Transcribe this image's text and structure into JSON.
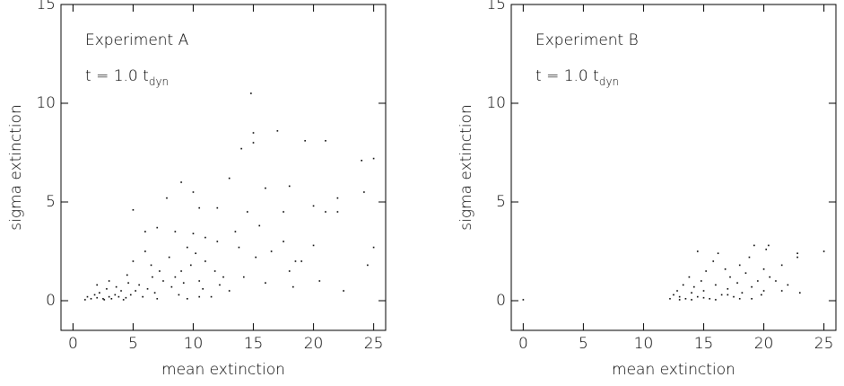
{
  "chart_data": [
    {
      "type": "scatter",
      "label": "Experiment A",
      "annotation": "t = 1.0 t",
      "annotation_subscript": "dyn",
      "x_label": "mean extinction",
      "y_label": "sigma extinction",
      "color": "#000000",
      "xlim": [
        -1,
        26
      ],
      "ylim": [
        -1.5,
        15
      ],
      "xticks": [
        0,
        5,
        10,
        15,
        20,
        25
      ],
      "yticks": [
        0,
        5,
        10,
        15
      ],
      "x": [
        14.8,
        15,
        15,
        17,
        19.3,
        21,
        24,
        25,
        14,
        13,
        9,
        10,
        16,
        18,
        20,
        22,
        24.2,
        25,
        24.5,
        22.5,
        18,
        18.3,
        17.5,
        14.5,
        15.5,
        16.5,
        20,
        19,
        13.5,
        12,
        11,
        10,
        9.5,
        8.5,
        7,
        6,
        5,
        7.8,
        11,
        12.5,
        13,
        10.5,
        9,
        8,
        7.5,
        6.5,
        5.5,
        4.5,
        4,
        3.5,
        3,
        2.5,
        2,
        1.5,
        1,
        2.2,
        2.8,
        3.2,
        3.8,
        4.2,
        4.8,
        5.2,
        5.8,
        6.2,
        6.8,
        7.2,
        8.2,
        8.8,
        9.2,
        9.8,
        10.2,
        10.8,
        11.5,
        12.2,
        14.2,
        15.2,
        6,
        5,
        3,
        2,
        1.8,
        1.2,
        3.6,
        4.6,
        6.6,
        8.5,
        7,
        9.5,
        10.5,
        11.8,
        13.8,
        16,
        17.5,
        22,
        21,
        12,
        10.5,
        18.5,
        20.5,
        2.6,
        4.4
      ],
      "y": [
        10.5,
        8.5,
        8,
        8.6,
        8.1,
        8.1,
        7.1,
        7.2,
        7.7,
        6.2,
        6,
        5.5,
        5.7,
        5.8,
        4.8,
        5.2,
        5.5,
        2.7,
        1.8,
        0.5,
        1.5,
        0.7,
        4.5,
        4.5,
        3.8,
        2.5,
        2.8,
        2,
        3.5,
        3,
        3.2,
        3.4,
        2.7,
        3.5,
        3.7,
        3.5,
        4.6,
        5.2,
        2,
        1.2,
        0.5,
        1,
        1.5,
        2.2,
        1,
        1.8,
        0.8,
        1.3,
        0.5,
        0.3,
        0.2,
        0.1,
        0.15,
        0.1,
        0.05,
        0.4,
        0.6,
        0.1,
        0.2,
        0.05,
        0.3,
        0.5,
        0.2,
        0.6,
        0.4,
        1.5,
        0.7,
        0.3,
        0.9,
        1.8,
        2.4,
        0.6,
        0.2,
        0.8,
        1.2,
        2.2,
        2.5,
        2,
        1,
        0.8,
        0.3,
        0.2,
        0.7,
        0.9,
        1.2,
        1.2,
        0.1,
        0.1,
        0.2,
        1.5,
        2.7,
        0.9,
        3,
        4.5,
        4.5,
        4.7,
        4.7,
        2,
        1,
        0.05,
        0.15
      ]
    },
    {
      "type": "scatter",
      "label": "Experiment B",
      "annotation": "t = 1.0 t",
      "annotation_subscript": "dyn",
      "x_label": "mean extinction",
      "y_label": "sigma extinction",
      "color": "#000000",
      "xlim": [
        -1,
        26
      ],
      "ylim": [
        -1.5,
        15
      ],
      "xticks": [
        0,
        5,
        10,
        15,
        20,
        25
      ],
      "yticks": [
        0,
        5,
        10,
        15
      ],
      "x": [
        0,
        12.2,
        12.5,
        12.8,
        13,
        13.3,
        13.5,
        13.8,
        14,
        14.2,
        14.5,
        14.5,
        14.8,
        15,
        15.2,
        15.5,
        15.8,
        16,
        16.2,
        16.5,
        16.8,
        17,
        17.2,
        17.5,
        17.8,
        18,
        18.2,
        18.5,
        18.8,
        19,
        19.2,
        19.5,
        19.8,
        20,
        20.2,
        20.4,
        20.5,
        21,
        21.5,
        22,
        22.8,
        23,
        25,
        14,
        16,
        18,
        17,
        15,
        13,
        19,
        20,
        21.5,
        22.8
      ],
      "y": [
        0.05,
        0.1,
        0.3,
        0.5,
        0.2,
        0.8,
        0.1,
        1.2,
        0.4,
        0.7,
        2.5,
        0.2,
        1,
        0.5,
        1.5,
        0.1,
        2,
        0.8,
        2.4,
        0.3,
        1.6,
        0.6,
        1.2,
        0.2,
        0.9,
        1.8,
        0.4,
        1.4,
        2.2,
        0.7,
        2.8,
        1,
        0.3,
        1.6,
        2.6,
        2.8,
        1.2,
        1,
        0.5,
        0.8,
        2.4,
        0.4,
        2.5,
        0.05,
        0.05,
        0.1,
        0.3,
        0.15,
        0.05,
        0.1,
        0.5,
        1.8,
        2.2
      ]
    }
  ]
}
